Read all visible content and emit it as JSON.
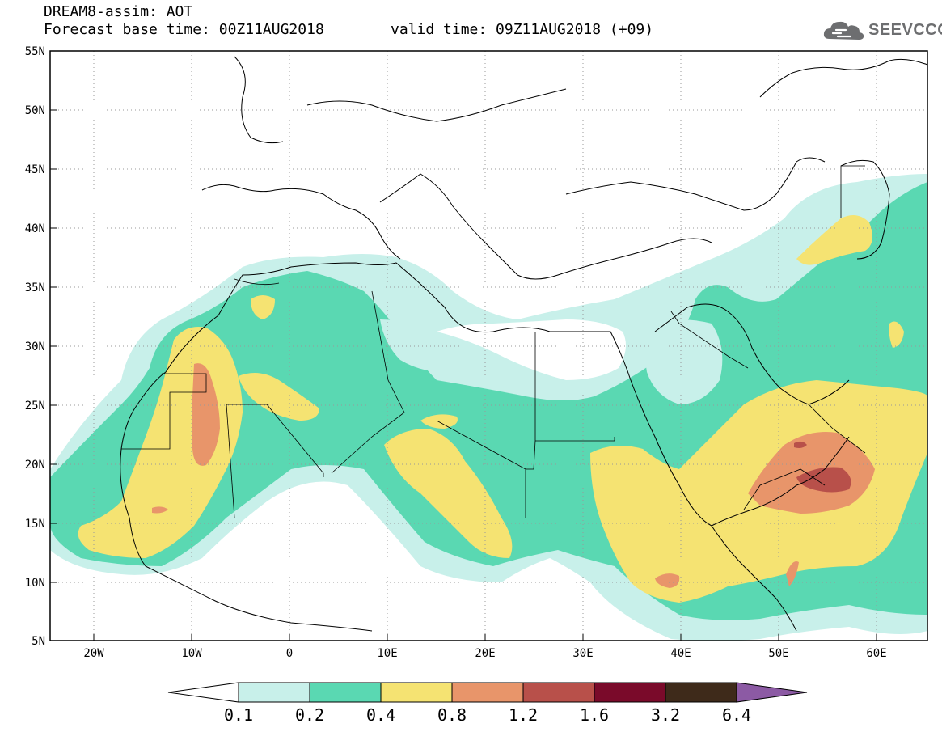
{
  "header": {
    "line1": "DREAM8-assim: AOT",
    "line2": "Forecast base time: 00Z11AUG2018",
    "valid": "valid time: 09Z11AUG2018 (+09)"
  },
  "logo": {
    "text": "SEEVCCC",
    "icon": "cloud-logo-icon"
  },
  "map": {
    "lat_labels": [
      "55N",
      "50N",
      "45N",
      "40N",
      "35N",
      "30N",
      "25N",
      "20N",
      "15N",
      "10N",
      "5N"
    ],
    "lon_labels": [
      "20W",
      "10W",
      "0",
      "10E",
      "20E",
      "30E",
      "40E",
      "50E",
      "60E"
    ],
    "lat_range": [
      5,
      55
    ],
    "lon_range": [
      -25,
      65
    ]
  },
  "colorbar": {
    "labels": [
      "0.1",
      "0.2",
      "0.4",
      "0.8",
      "1.2",
      "1.6",
      "3.2",
      "6.4"
    ],
    "colors": [
      "#ffffff",
      "#c8f0ea",
      "#5ad8b2",
      "#f5e372",
      "#e8956a",
      "#b8504a",
      "#7a0a2a",
      "#3e2a1a",
      "#8c5aa4"
    ]
  }
}
